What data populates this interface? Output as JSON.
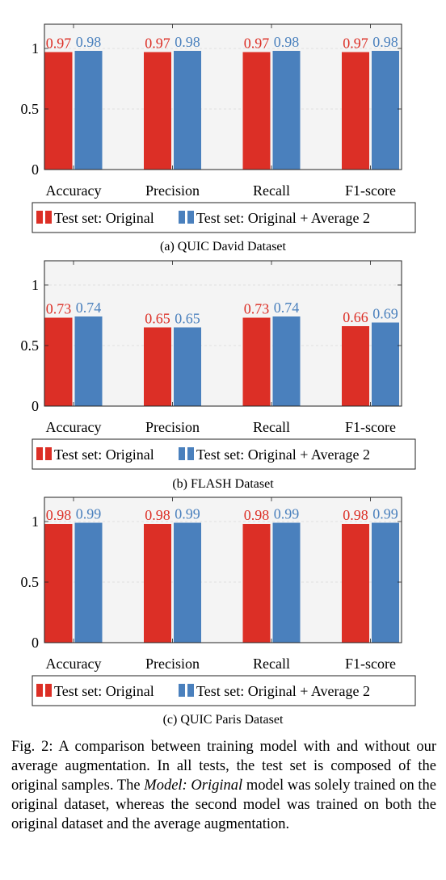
{
  "colors": {
    "original": "#dc2f26",
    "augmented": "#4a80bd",
    "plot_bg": "#f4f4f4"
  },
  "chart_data": [
    {
      "type": "bar",
      "caption": "(a) QUIC David Dataset",
      "categories": [
        "Accuracy",
        "Precision",
        "Recall",
        "F1-score"
      ],
      "ylim": [
        0,
        1.2
      ],
      "yticks": [
        0,
        0.5,
        1
      ],
      "ytick_labels": [
        "0",
        "0.5",
        "1"
      ],
      "grid": true,
      "legend_position": "bottom",
      "series": [
        {
          "name": "Test set: Original",
          "values": [
            0.97,
            0.97,
            0.97,
            0.97
          ],
          "labels": [
            "0.97",
            "0.97",
            "0.97",
            "0.97"
          ]
        },
        {
          "name": "Test set: Original + Average 2",
          "values": [
            0.98,
            0.98,
            0.98,
            0.98
          ],
          "labels": [
            "0.98",
            "0.98",
            "0.98",
            "0.98"
          ]
        }
      ]
    },
    {
      "type": "bar",
      "caption": "(b) FLASH Dataset",
      "categories": [
        "Accuracy",
        "Precision",
        "Recall",
        "F1-score"
      ],
      "ylim": [
        0,
        1.2
      ],
      "yticks": [
        0,
        0.5,
        1
      ],
      "ytick_labels": [
        "0",
        "0.5",
        "1"
      ],
      "grid": true,
      "legend_position": "bottom",
      "series": [
        {
          "name": "Test set: Original",
          "values": [
            0.73,
            0.65,
            0.73,
            0.66
          ],
          "labels": [
            "0.73",
            "0.65",
            "0.73",
            "0.66"
          ]
        },
        {
          "name": "Test set: Original + Average 2",
          "values": [
            0.74,
            0.65,
            0.74,
            0.69
          ],
          "labels": [
            "0.74",
            "0.65",
            "0.74",
            "0.69"
          ]
        }
      ]
    },
    {
      "type": "bar",
      "caption": "(c) QUIC Paris Dataset",
      "categories": [
        "Accuracy",
        "Precision",
        "Recall",
        "F1-score"
      ],
      "ylim": [
        0,
        1.2
      ],
      "yticks": [
        0,
        0.5,
        1
      ],
      "ytick_labels": [
        "0",
        "0.5",
        "1"
      ],
      "grid": true,
      "legend_position": "bottom",
      "series": [
        {
          "name": "Test set: Original",
          "values": [
            0.98,
            0.98,
            0.98,
            0.98
          ],
          "labels": [
            "0.98",
            "0.98",
            "0.98",
            "0.98"
          ]
        },
        {
          "name": "Test set: Original + Average 2",
          "values": [
            0.99,
            0.99,
            0.99,
            0.99
          ],
          "labels": [
            "0.99",
            "0.99",
            "0.99",
            "0.99"
          ]
        }
      ]
    }
  ],
  "figure_caption": {
    "p1": "Fig. 2: A comparison between training model with and without our average augmentation. In all tests, the test set is composed of the original samples. The ",
    "em": "Model: Original",
    "p2": " model was solely trained on the original dataset, whereas the second model was trained on both the original dataset and the average augmentation."
  }
}
